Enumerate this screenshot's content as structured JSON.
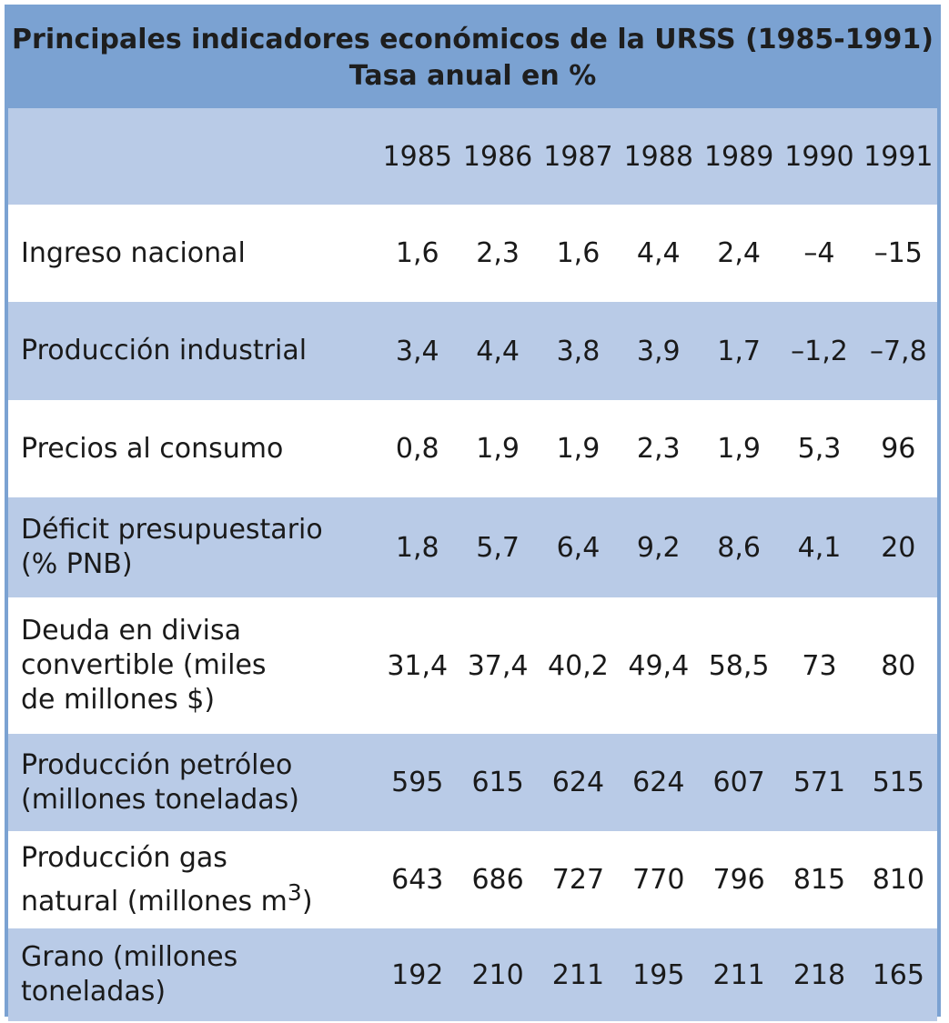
{
  "title": {
    "line1": "Principales indicadores económicos de la URSS (1985-1991)",
    "line2": "Tasa anual en %"
  },
  "years": [
    "1985",
    "1986",
    "1987",
    "1988",
    "1989",
    "1990",
    "1991"
  ],
  "rows": [
    {
      "label_lines": [
        "Ingreso nacional"
      ],
      "values": [
        "1,6",
        "2,3",
        "1,6",
        "4,4",
        "2,4",
        "–4",
        "–15"
      ]
    },
    {
      "label_lines": [
        "Producción industrial"
      ],
      "values": [
        "3,4",
        "4,4",
        "3,8",
        "3,9",
        "1,7",
        "–1,2",
        "–7,8"
      ]
    },
    {
      "label_lines": [
        "Precios al consumo"
      ],
      "values": [
        "0,8",
        "1,9",
        "1,9",
        "2,3",
        "1,9",
        "5,3",
        "96"
      ]
    },
    {
      "label_lines": [
        "Déficit presupuestario",
        "(% PNB)"
      ],
      "values": [
        "1,8",
        "5,7",
        "6,4",
        "9,2",
        "8,6",
        "4,1",
        "20"
      ]
    },
    {
      "label_lines": [
        "Deuda en divisa",
        "convertible (miles",
        "de millones $)"
      ],
      "values": [
        "31,4",
        "37,4",
        "40,2",
        "49,4",
        "58,5",
        "73",
        "80"
      ]
    },
    {
      "label_lines": [
        "Producción petróleo",
        "(millones toneladas)"
      ],
      "values": [
        "595",
        "615",
        "624",
        "624",
        "607",
        "571",
        "515"
      ]
    },
    {
      "label_lines": [
        "Producción gas",
        "natural (millones m",
        "3",
        ")"
      ],
      "values": [
        "643",
        "686",
        "727",
        "770",
        "796",
        "815",
        "810"
      ]
    },
    {
      "label_lines": [
        "Grano (millones",
        "toneladas)"
      ],
      "values": [
        "192",
        "210",
        "211",
        "195",
        "211",
        "218",
        "165"
      ]
    }
  ],
  "colors": {
    "header_band": "#7ba2d2",
    "shaded_row": "#b9cbe7",
    "plain_row": "#ffffff"
  }
}
